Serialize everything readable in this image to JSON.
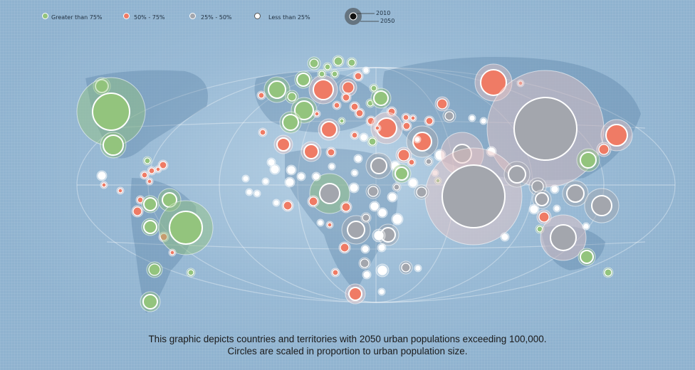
{
  "legend": {
    "items": [
      {
        "label": "Greater than 75%",
        "color": "#93c47d"
      },
      {
        "label": "50% - 75%",
        "color": "#ef7b65"
      },
      {
        "label": "25% - 50%",
        "color": "#a3a6ad"
      },
      {
        "label": "Less than 25%",
        "color": "#ffffff"
      }
    ],
    "years": {
      "inner": "2010",
      "outer": "2050"
    }
  },
  "caption": {
    "line1": "This graphic depicts countries and territories with 2050 urban populations exceeding 100,000.",
    "line2": "Circles are scaled in proportion to urban population size."
  },
  "colors": {
    "green": "#93c47d",
    "red": "#ef7b65",
    "gray": "#a3a6ad",
    "white": "#ffffff",
    "halo": "#e8c4c4",
    "background": "#8fb2cf"
  },
  "chart_data": {
    "type": "bubble-map",
    "categories": [
      "Greater than 75%",
      "50% - 75%",
      "25% - 50%",
      "Less than 25%"
    ]
  }
}
